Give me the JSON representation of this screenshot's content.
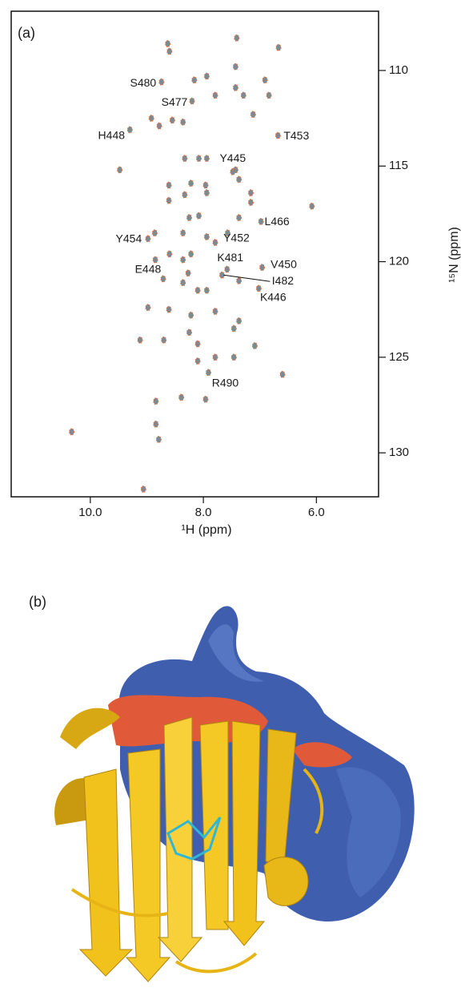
{
  "chart_data": {
    "type": "scatter",
    "panel_label": "(a)",
    "x_label": "¹H (ppm)",
    "y_label": "¹⁵N (ppm)",
    "xlim": [
      11.4,
      4.9
    ],
    "ylim": [
      132.3,
      106.9
    ],
    "xticks": [
      {
        "value": 10,
        "label": "10.0"
      },
      {
        "value": 8,
        "label": "8.0"
      },
      {
        "value": 6,
        "label": "6.0"
      }
    ],
    "yticks": [
      110,
      115,
      120,
      125,
      130
    ],
    "color": "#7c8a93",
    "edge_color": "#e8743b",
    "x": [
      8.63,
      8.6,
      7.41,
      6.67,
      8.16,
      7.94,
      7.43,
      7.43,
      7.29,
      6.91,
      6.84,
      7.79,
      8.55,
      8.92,
      8.78,
      8.36,
      7.12,
      9.48,
      8.33,
      8.08,
      7.94,
      7.43,
      7.37,
      8.61,
      8.22,
      7.96,
      8.33,
      7.94,
      7.16,
      7.16,
      8.61,
      8.08,
      8.25,
      7.37,
      6.08,
      8.86,
      8.36,
      7.94,
      7.79,
      8.6,
      8.22,
      8.36,
      8.85,
      8.27,
      7.94,
      7.37,
      8.36,
      8.1,
      8.61,
      8.98,
      8.22,
      7.79,
      7.37,
      8.25,
      7.46,
      9.12,
      8.7,
      8.1,
      7.09,
      7.79,
      7.46,
      8.1,
      6.6,
      8.39,
      8.84,
      8.84,
      7.96,
      8.79,
      10.33,
      9.06
    ],
    "values": [
      108.6,
      109.0,
      108.3,
      108.8,
      110.5,
      110.3,
      109.8,
      110.9,
      111.3,
      110.5,
      111.3,
      111.3,
      112.6,
      112.5,
      112.9,
      112.7,
      112.3,
      115.2,
      114.6,
      114.6,
      114.6,
      115.2,
      115.7,
      116.0,
      115.9,
      116.0,
      116.5,
      116.4,
      116.4,
      116.9,
      116.8,
      117.6,
      117.7,
      117.7,
      117.1,
      118.5,
      118.5,
      118.7,
      119.0,
      119.6,
      119.6,
      119.9,
      119.9,
      120.6,
      121.5,
      121.0,
      121.1,
      121.5,
      122.5,
      122.4,
      122.8,
      122.6,
      123.1,
      123.7,
      123.5,
      124.1,
      124.1,
      124.3,
      124.4,
      125.0,
      125.0,
      125.2,
      125.9,
      127.1,
      127.3,
      128.5,
      127.2,
      129.3,
      128.9,
      131.9
    ],
    "annotations": [
      {
        "text": "S480",
        "x": 8.74,
        "y": 110.6
      },
      {
        "text": "S477",
        "x": 8.2,
        "y": 111.6
      },
      {
        "text": "H448",
        "x": 9.3,
        "y": 113.1
      },
      {
        "text": "T453",
        "x": 6.68,
        "y": 113.4
      },
      {
        "text": "Y445",
        "x": 7.48,
        "y": 115.3
      },
      {
        "text": "L466",
        "x": 6.98,
        "y": 117.9
      },
      {
        "text": "Y454",
        "x": 8.98,
        "y": 118.8
      },
      {
        "text": "Y452",
        "x": 7.57,
        "y": 118.5
      },
      {
        "text": "K481",
        "x": 7.58,
        "y": 120.4
      },
      {
        "text": "V450",
        "x": 6.96,
        "y": 120.3
      },
      {
        "text": "E448",
        "x": 8.71,
        "y": 120.9
      },
      {
        "text": "I482",
        "x": 7.67,
        "y": 120.7
      },
      {
        "text": "K446",
        "x": 7.02,
        "y": 121.4
      },
      {
        "text": "R490",
        "x": 7.91,
        "y": 125.8
      }
    ]
  },
  "panel_b": {
    "label": "(b)"
  }
}
